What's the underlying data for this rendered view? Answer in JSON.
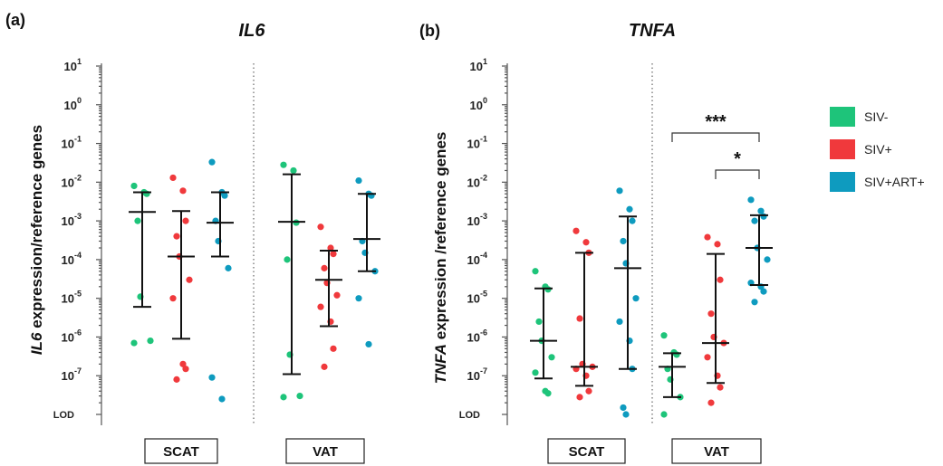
{
  "legend": [
    {
      "label": "SIV-",
      "color": "#1ec47a"
    },
    {
      "label": "SIV+",
      "color": "#f0393c"
    },
    {
      "label": "SIV+ART+",
      "color": "#0e9bbf"
    }
  ],
  "chart_data": [
    {
      "type": "scatter",
      "panel_label": "(a)",
      "title": "IL6",
      "ylabel_italic": "IL6",
      "ylabel_rest": " expression/reference genes",
      "yscale": "log10",
      "ylim": [
        1e-08,
        10
      ],
      "ytick_exponents": [
        1,
        0,
        -1,
        -2,
        -3,
        -4,
        -5,
        -6,
        -7
      ],
      "ytick_base": "10",
      "lod_label": "LOD",
      "groups": [
        "SCAT",
        "VAT"
      ],
      "series": [
        {
          "name": "SIV-",
          "group": "SCAT",
          "color": "#1ec47a",
          "median": 0.0017,
          "lower": 6e-06,
          "upper": 0.0055,
          "values": [
            0.008,
            0.0055,
            0.005,
            0.001,
            1.1e-05,
            8e-07,
            7e-07
          ]
        },
        {
          "name": "SIV+",
          "group": "SCAT",
          "color": "#f0393c",
          "median": 0.00012,
          "lower": 9e-07,
          "upper": 0.0018,
          "values": [
            0.013,
            0.006,
            0.001,
            0.0004,
            0.00012,
            3e-05,
            1e-05,
            2e-07,
            1.5e-07,
            8e-08
          ]
        },
        {
          "name": "SIV+ART+",
          "group": "SCAT",
          "color": "#0e9bbf",
          "median": 0.0009,
          "lower": 0.00012,
          "upper": 0.0055,
          "values": [
            0.033,
            0.0055,
            0.0045,
            0.001,
            0.0003,
            6e-05,
            9e-08,
            2.5e-08
          ]
        },
        {
          "name": "SIV-",
          "group": "VAT",
          "color": "#1ec47a",
          "median": 0.00095,
          "lower": 1.1e-07,
          "upper": 0.016,
          "values": [
            0.028,
            0.02,
            0.0009,
            0.0001,
            3.5e-07,
            3e-08,
            2.8e-08
          ]
        },
        {
          "name": "SIV+",
          "group": "VAT",
          "color": "#f0393c",
          "median": 3e-05,
          "lower": 1.9e-06,
          "upper": 0.00017,
          "values": [
            0.0007,
            0.0002,
            0.00014,
            6e-05,
            2.5e-05,
            1.2e-05,
            6e-06,
            2.5e-06,
            5e-07,
            1.7e-07
          ]
        },
        {
          "name": "SIV+ART+",
          "group": "VAT",
          "color": "#0e9bbf",
          "median": 0.00034,
          "lower": 5e-05,
          "upper": 0.005,
          "values": [
            0.011,
            0.005,
            0.0045,
            0.0003,
            0.00015,
            5e-05,
            1e-05,
            6.5e-07
          ]
        }
      ]
    },
    {
      "type": "scatter",
      "panel_label": "(b)",
      "title": "TNFA",
      "ylabel_italic": "TNFA",
      "ylabel_rest": " expression /reference genes",
      "yscale": "log10",
      "ylim": [
        1e-08,
        10
      ],
      "ytick_exponents": [
        1,
        0,
        -1,
        -2,
        -3,
        -4,
        -5,
        -6,
        -7
      ],
      "ytick_base": "10",
      "lod_label": "LOD",
      "groups": [
        "SCAT",
        "VAT"
      ],
      "series": [
        {
          "name": "SIV-",
          "group": "SCAT",
          "color": "#1ec47a",
          "median": 8e-07,
          "lower": 8.5e-08,
          "upper": 1.8e-05,
          "values": [
            5e-05,
            2e-05,
            1.7e-05,
            2.5e-06,
            8e-07,
            3e-07,
            1.2e-07,
            4e-08,
            3.5e-08
          ]
        },
        {
          "name": "SIV+",
          "group": "SCAT",
          "color": "#f0393c",
          "median": 1.7e-07,
          "lower": 5.5e-08,
          "upper": 0.00015,
          "values": [
            0.00055,
            0.00028,
            0.00015,
            3e-06,
            2e-07,
            1.7e-07,
            1.5e-07,
            1e-07,
            4e-08,
            2.8e-08
          ]
        },
        {
          "name": "SIV+ART+",
          "group": "SCAT",
          "color": "#0e9bbf",
          "median": 6e-05,
          "lower": 1.5e-07,
          "upper": 0.0013,
          "values": [
            0.006,
            0.002,
            0.001,
            0.0003,
            8e-05,
            1e-05,
            2.5e-06,
            8e-07,
            1.5e-07,
            1.5e-08,
            1e-08
          ]
        },
        {
          "name": "SIV-",
          "group": "VAT",
          "color": "#1ec47a",
          "median": 1.7e-07,
          "lower": 2.8e-08,
          "upper": 3.8e-07,
          "values": [
            1.1e-06,
            4e-07,
            3.5e-07,
            1.5e-07,
            8e-08,
            2.8e-08,
            1e-08
          ]
        },
        {
          "name": "SIV+",
          "group": "VAT",
          "color": "#f0393c",
          "median": 7e-07,
          "lower": 6.5e-08,
          "upper": 0.00014,
          "values": [
            0.00038,
            0.00025,
            3e-05,
            4e-06,
            1e-06,
            7e-07,
            3e-07,
            1e-07,
            5e-08,
            2e-08
          ]
        },
        {
          "name": "SIV+ART+",
          "group": "VAT",
          "color": "#0e9bbf",
          "median": 0.0002,
          "lower": 2.2e-05,
          "upper": 0.0014,
          "values": [
            0.0035,
            0.0018,
            0.0013,
            0.001,
            0.0002,
            0.0001,
            2.5e-05,
            2e-05,
            1.5e-05,
            8e-06
          ]
        }
      ],
      "significance": [
        {
          "label": "***",
          "from_series": 3,
          "to_series": 5
        },
        {
          "label": "*",
          "from_series": 4,
          "to_series": 5
        }
      ]
    }
  ]
}
